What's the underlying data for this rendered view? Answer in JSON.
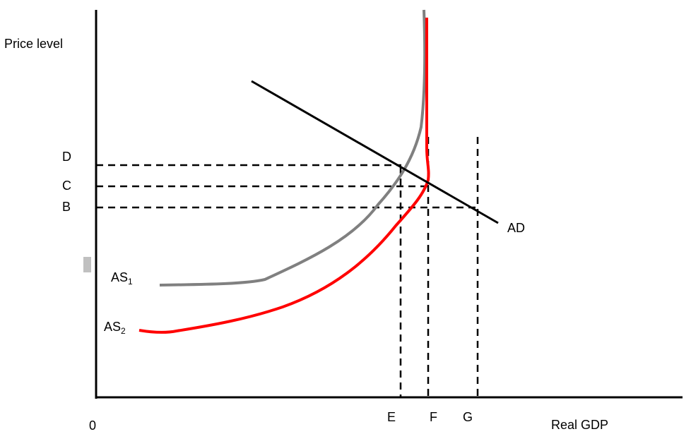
{
  "axes": {
    "y_label": "Price level",
    "x_label": "Real GDP",
    "origin_label": "0"
  },
  "price_levels": [
    "D",
    "C",
    "B"
  ],
  "output_levels": [
    "E",
    "F",
    "G"
  ],
  "curves": {
    "ad": {
      "label": "AD",
      "color": "#000000"
    },
    "as1": {
      "label": "AS",
      "subscript": "1",
      "color": "#808080"
    },
    "as2": {
      "label": "AS",
      "subscript": "2",
      "color": "#ff0000"
    }
  }
}
